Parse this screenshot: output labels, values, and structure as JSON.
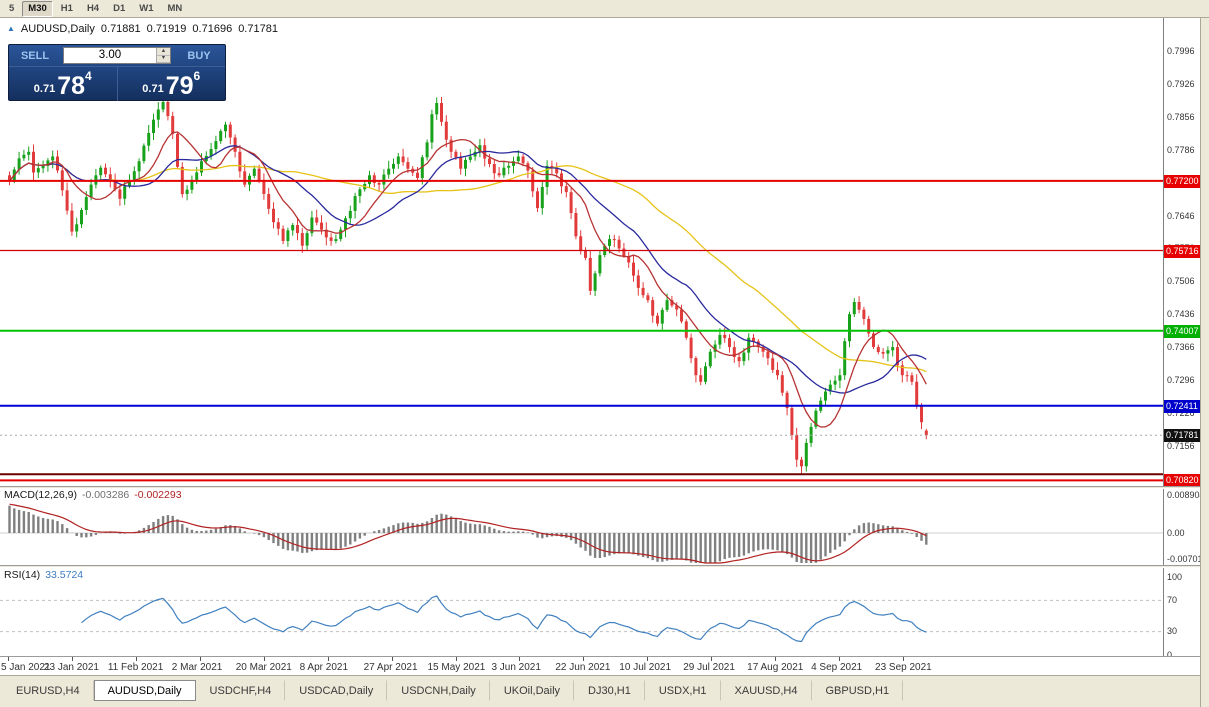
{
  "toolbar": {
    "periods": [
      {
        "label": "5",
        "active": false
      },
      {
        "label": "M30",
        "active": true
      },
      {
        "label": "H1",
        "active": false
      },
      {
        "label": "H4",
        "active": false
      },
      {
        "label": "D1",
        "active": false
      },
      {
        "label": "W1",
        "active": false
      },
      {
        "label": "MN",
        "active": false
      }
    ]
  },
  "chart_header": {
    "symbol": "AUDUSD,Daily",
    "open": "0.71881",
    "high": "0.71919",
    "low": "0.71696",
    "close": "0.71781"
  },
  "trade_panel": {
    "sell_label": "SELL",
    "buy_label": "BUY",
    "volume": "3.00",
    "sell_price": {
      "prefix": "0.71",
      "big": "78",
      "sup": "4"
    },
    "buy_price": {
      "prefix": "0.71",
      "big": "79",
      "sup": "6"
    }
  },
  "icons": {
    "volume_up": "▲",
    "volume_down": "▼",
    "symbol_arrow": "▲"
  },
  "price_axis": {
    "grid_labels": [
      "0.7996",
      "0.7926",
      "0.7856",
      "0.7786",
      "0.7716",
      "0.7646",
      "0.7576",
      "0.7506",
      "0.7436",
      "0.7366",
      "0.7296",
      "0.7226",
      "0.7156",
      "0.7086"
    ]
  },
  "price_badges": [
    {
      "label": "0.77200",
      "bg": "#E60000"
    },
    {
      "label": "0.75716",
      "bg": "#E60000"
    },
    {
      "label": "0.74007",
      "bg": "#00B000"
    },
    {
      "label": "0.72411",
      "bg": "#0000CC"
    },
    {
      "label": "0.71781",
      "bg": "#111111"
    },
    {
      "label": "0.70820",
      "bg": "#E60000"
    }
  ],
  "macd_panel": {
    "title": "MACD(12,26,9)",
    "value1": "-0.003286",
    "value2": "-0.002293",
    "axis_labels": [
      "0.008904",
      "0.00",
      "-0.007013"
    ]
  },
  "rsi_panel": {
    "title": "RSI(14)",
    "value": "33.5724",
    "axis_labels": [
      "100",
      "70",
      "30",
      "0"
    ]
  },
  "date_axis": {
    "ticks": [
      "5 Jan 2021",
      "23 Jan 2021",
      "11 Feb 2021",
      "2 Mar 2021",
      "20 Mar 2021",
      "8 Apr 2021",
      "27 Apr 2021",
      "15 May 2021",
      "3 Jun 2021",
      "22 Jun 2021",
      "10 Jul 2021",
      "29 Jul 2021",
      "17 Aug 2021",
      "4 Sep 2021",
      "23 Sep 2021"
    ]
  },
  "tabs": [
    {
      "label": "EURUSD,H4",
      "active": false
    },
    {
      "label": "AUDUSD,Daily",
      "active": true
    },
    {
      "label": "USDCHF,H4",
      "active": false
    },
    {
      "label": "USDCAD,Daily",
      "active": false
    },
    {
      "label": "USDCNH,Daily",
      "active": false
    },
    {
      "label": "UKOil,Daily",
      "active": false
    },
    {
      "label": "DJ30,H1",
      "active": false
    },
    {
      "label": "USDX,H1",
      "active": false
    },
    {
      "label": "XAUUSD,H4",
      "active": false
    },
    {
      "label": "GBPUSD,H1",
      "active": false
    }
  ],
  "chart_data": {
    "type": "candlestick",
    "symbol": "AUDUSD",
    "timeframe": "Daily",
    "seed": 11,
    "num_candles": 192,
    "colors": {
      "bull": "#18A21B",
      "bear": "#E23B3B"
    },
    "y_range": {
      "top": 0.8067,
      "bottom": 0.707
    },
    "price_anchors": [
      [
        0,
        0.772
      ],
      [
        2,
        0.7768
      ],
      [
        4,
        0.7782
      ],
      [
        5,
        0.7738
      ],
      [
        7,
        0.7752
      ],
      [
        9,
        0.7772
      ],
      [
        11,
        0.77
      ],
      [
        13,
        0.7612
      ],
      [
        15,
        0.7658
      ],
      [
        17,
        0.7712
      ],
      [
        19,
        0.7748
      ],
      [
        21,
        0.7722
      ],
      [
        23,
        0.7682
      ],
      [
        25,
        0.7722
      ],
      [
        27,
        0.7762
      ],
      [
        29,
        0.7822
      ],
      [
        31,
        0.7872
      ],
      [
        32,
        0.7888
      ],
      [
        33,
        0.7858
      ],
      [
        34,
        0.782
      ],
      [
        36,
        0.7692
      ],
      [
        38,
        0.7722
      ],
      [
        40,
        0.7762
      ],
      [
        42,
        0.7788
      ],
      [
        44,
        0.7826
      ],
      [
        45,
        0.784
      ],
      [
        47,
        0.7782
      ],
      [
        49,
        0.7712
      ],
      [
        51,
        0.7746
      ],
      [
        53,
        0.7692
      ],
      [
        55,
        0.7632
      ],
      [
        57,
        0.7592
      ],
      [
        59,
        0.7626
      ],
      [
        61,
        0.7582
      ],
      [
        63,
        0.7642
      ],
      [
        65,
        0.7616
      ],
      [
        67,
        0.7592
      ],
      [
        69,
        0.7616
      ],
      [
        71,
        0.7656
      ],
      [
        73,
        0.7702
      ],
      [
        75,
        0.7732
      ],
      [
        77,
        0.7712
      ],
      [
        79,
        0.7746
      ],
      [
        81,
        0.7772
      ],
      [
        83,
        0.7746
      ],
      [
        85,
        0.7726
      ],
      [
        87,
        0.7802
      ],
      [
        88,
        0.7862
      ],
      [
        89,
        0.7886
      ],
      [
        90,
        0.7846
      ],
      [
        92,
        0.7782
      ],
      [
        94,
        0.7746
      ],
      [
        96,
        0.7772
      ],
      [
        98,
        0.7796
      ],
      [
        100,
        0.7756
      ],
      [
        102,
        0.7732
      ],
      [
        104,
        0.7752
      ],
      [
        106,
        0.7772
      ],
      [
        108,
        0.7742
      ],
      [
        110,
        0.7662
      ],
      [
        112,
        0.7752
      ],
      [
        114,
        0.7736
      ],
      [
        116,
        0.7696
      ],
      [
        118,
        0.7602
      ],
      [
        120,
        0.7556
      ],
      [
        121,
        0.7486
      ],
      [
        123,
        0.7562
      ],
      [
        125,
        0.7596
      ],
      [
        127,
        0.7576
      ],
      [
        129,
        0.7546
      ],
      [
        131,
        0.7492
      ],
      [
        133,
        0.7466
      ],
      [
        135,
        0.7416
      ],
      [
        137,
        0.7466
      ],
      [
        139,
        0.7446
      ],
      [
        141,
        0.7386
      ],
      [
        143,
        0.7306
      ],
      [
        144,
        0.7292
      ],
      [
        146,
        0.7356
      ],
      [
        148,
        0.7392
      ],
      [
        150,
        0.7366
      ],
      [
        152,
        0.7336
      ],
      [
        154,
        0.7386
      ],
      [
        156,
        0.7366
      ],
      [
        158,
        0.7342
      ],
      [
        160,
        0.7306
      ],
      [
        162,
        0.7236
      ],
      [
        164,
        0.7126
      ],
      [
        165,
        0.7112
      ],
      [
        167,
        0.7196
      ],
      [
        169,
        0.7252
      ],
      [
        171,
        0.7286
      ],
      [
        173,
        0.7306
      ],
      [
        175,
        0.7436
      ],
      [
        176,
        0.7462
      ],
      [
        178,
        0.7426
      ],
      [
        180,
        0.7366
      ],
      [
        182,
        0.7352
      ],
      [
        184,
        0.7366
      ],
      [
        186,
        0.7306
      ],
      [
        188,
        0.7292
      ],
      [
        189,
        0.7242
      ],
      [
        190,
        0.7206
      ],
      [
        191,
        0.71781
      ]
    ],
    "last_candle": {
      "open": 0.71881,
      "high": 0.71919,
      "low": 0.71696,
      "close": 0.71781
    },
    "moving_averages": [
      {
        "period": 45,
        "color": "#E6C317"
      },
      {
        "period": 20,
        "color": "#2A2A9E"
      },
      {
        "period": 9,
        "color": "#B73333"
      }
    ],
    "horizontal_lines": [
      {
        "price": 0.772,
        "color": "#E60000",
        "w": 2
      },
      {
        "price": 0.75716,
        "color": "#D00000",
        "w": 1.2
      },
      {
        "price": 0.74007,
        "color": "#00C300",
        "w": 2
      },
      {
        "price": 0.72411,
        "color": "#0000D8",
        "w": 2
      },
      {
        "price": 0.71781,
        "color": "#A8A8A8",
        "w": 1,
        "dash": "2,3"
      },
      {
        "price": 0.7095,
        "color": "#6E0000",
        "w": 2
      },
      {
        "price": 0.7082,
        "color": "#E60000",
        "w": 2
      }
    ],
    "macd": {
      "fast": 12,
      "slow": 26,
      "signal": 9,
      "current_macd": -0.003286,
      "current_signal": -0.002293,
      "axis_max": 0.008904,
      "axis_min": -0.007013
    },
    "rsi": {
      "period": 14,
      "current": 33.5724,
      "levels": [
        70,
        30
      ]
    }
  }
}
